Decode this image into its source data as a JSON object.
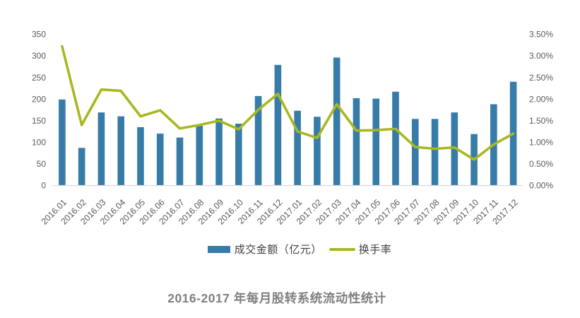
{
  "chart_data": {
    "type": "bar+line combo",
    "title": "2016-2017 年每月股转系统流动性统计",
    "categories": [
      "2016.01",
      "2016.02",
      "2016.03",
      "2016.04",
      "2016.05",
      "2016.06",
      "2016.07",
      "2016.08",
      "2016.09",
      "2016.10",
      "2016.11",
      "2016.12",
      "2017.01",
      "2017.02",
      "2017.03",
      "2017.04",
      "2017.05",
      "2017.06",
      "2017.07",
      "2017.08",
      "2017.09",
      "2017.10",
      "2017.11",
      "2017.12"
    ],
    "series": [
      {
        "name": "成交金额（亿元）",
        "type": "bar",
        "axis": "left",
        "color": "#377ca8",
        "values": [
          199,
          87,
          169,
          160,
          135,
          120,
          111,
          138,
          155,
          143,
          207,
          279,
          173,
          159,
          296,
          202,
          201,
          217,
          154,
          154,
          169,
          119,
          188,
          240
        ]
      },
      {
        "name": "换手率",
        "type": "line",
        "axis": "right",
        "color": "#a8b820",
        "values": [
          3.22,
          1.4,
          2.22,
          2.19,
          1.6,
          1.74,
          1.32,
          1.4,
          1.5,
          1.3,
          1.75,
          2.12,
          1.25,
          1.1,
          1.88,
          1.27,
          1.28,
          1.31,
          0.89,
          0.85,
          0.88,
          0.6,
          0.95,
          1.2
        ]
      }
    ],
    "left_axis": {
      "min": 0,
      "max": 350,
      "step": 50,
      "tick_labels": [
        "0",
        "50",
        "100",
        "150",
        "200",
        "250",
        "300",
        "350"
      ]
    },
    "right_axis": {
      "min": 0,
      "max": 3.5,
      "step": 0.5,
      "tick_labels": [
        "0.00%",
        "0.50%",
        "1.00%",
        "1.50%",
        "2.00%",
        "2.50%",
        "3.00%",
        "3.50%"
      ]
    },
    "grid": false,
    "legend_position": "bottom",
    "axis_line_color": "#d9d9d9",
    "label_color": "#595959",
    "title_color": "#7f7f7f"
  },
  "legend": {
    "bar_label": "成交金额（亿元）",
    "line_label": "换手率"
  }
}
